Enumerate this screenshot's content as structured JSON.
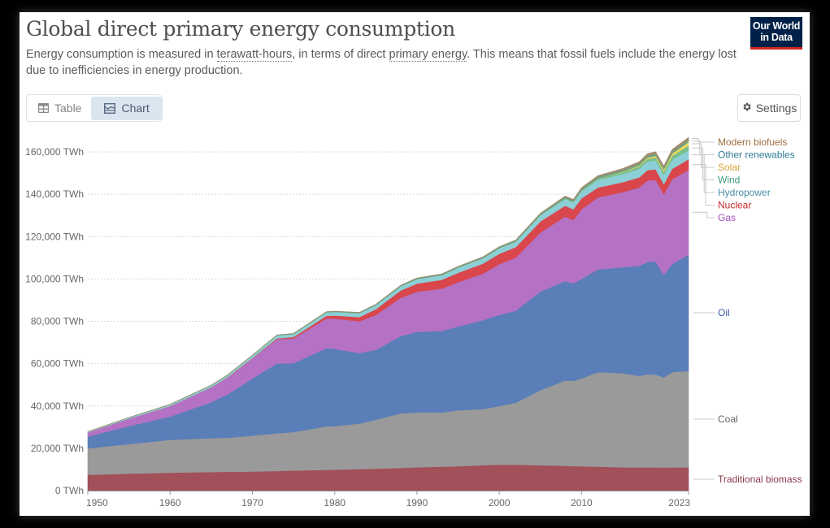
{
  "header": {
    "title": "Global direct primary energy consumption",
    "subtitle_parts": {
      "a": "Energy consumption is measured in ",
      "link1": "terawatt-hours",
      "b": ", in terms of direct ",
      "link2": "primary energy",
      "c": ". This means that fossil fuels include the energy lost due to inefficiencies in energy production."
    },
    "logo_line1": "Our World",
    "logo_line2": "in Data"
  },
  "controls": {
    "tabs": [
      {
        "label": "Table",
        "icon": "table-icon",
        "active": false
      },
      {
        "label": "Chart",
        "icon": "chart-icon",
        "active": true
      }
    ],
    "settings_label": "Settings",
    "settings_icon": "gear-icon"
  },
  "colors": {
    "Traditional biomass": "#a2505a",
    "Coal": "#9a9a9a",
    "Oil": "#5a7eb8",
    "Gas": "#b572c4",
    "Nuclear": "#d9464b",
    "Hydropower": "#8ccfd6",
    "Wind": "#7bbf8c",
    "Solar": "#f2d85a",
    "Other renewables": "#6aa58a",
    "Modern biofuels": "#a58a6a"
  },
  "legend_text_colors": {
    "Traditional biomass": "#8a3a47",
    "Coal": "#666666",
    "Oil": "#3b5aa0",
    "Gas": "#a050b8",
    "Nuclear": "#c62828",
    "Hydropower": "#4a8fa8",
    "Wind": "#3d9a76",
    "Solar": "#d8a43a",
    "Other renewables": "#2b7a93",
    "Modern biofuels": "#a06d3e"
  },
  "chart_data": {
    "type": "area",
    "stacked": true,
    "title": "Global direct primary energy consumption",
    "ylabel": "TWh",
    "xlabel": "",
    "ylim": [
      0,
      165000
    ],
    "xlim": [
      1950,
      2023
    ],
    "y_ticks": [
      0,
      20000,
      40000,
      60000,
      80000,
      100000,
      120000,
      140000,
      160000
    ],
    "y_tick_labels": [
      "0 TWh",
      "20,000 TWh",
      "40,000 TWh",
      "60,000 TWh",
      "80,000 TWh",
      "100,000 TWh",
      "120,000 TWh",
      "140,000 TWh",
      "160,000 TWh"
    ],
    "x_ticks": [
      1950,
      1960,
      1970,
      1980,
      1990,
      2000,
      2010,
      2023
    ],
    "x_tick_labels": [
      "1950",
      "1960",
      "1970",
      "1980",
      "1990",
      "2000",
      "2010",
      "2023"
    ],
    "grid": true,
    "legend_position": "right",
    "x": [
      1950,
      1955,
      1960,
      1965,
      1967,
      1970,
      1973,
      1975,
      1979,
      1980,
      1983,
      1985,
      1988,
      1990,
      1993,
      1995,
      1998,
      2000,
      2002,
      2005,
      2008,
      2009,
      2010,
      2012,
      2015,
      2017,
      2018,
      2019,
      2020,
      2021,
      2023
    ],
    "series": [
      {
        "name": "Traditional biomass",
        "values": [
          7500,
          8000,
          8500,
          8800,
          8900,
          9000,
          9300,
          9500,
          9800,
          9900,
          10200,
          10400,
          10700,
          11000,
          11300,
          11500,
          12000,
          12300,
          12300,
          12000,
          11700,
          11600,
          11500,
          11300,
          11000,
          11000,
          11000,
          11000,
          10900,
          11000,
          11000
        ]
      },
      {
        "name": "Coal",
        "values": [
          12500,
          14000,
          15500,
          16000,
          16100,
          17000,
          17800,
          18200,
          20500,
          20600,
          21500,
          23100,
          25800,
          26000,
          25600,
          26500,
          26500,
          27700,
          29200,
          35500,
          40300,
          40300,
          41500,
          44700,
          44500,
          43200,
          44000,
          43800,
          42600,
          45000,
          45500
        ]
      },
      {
        "name": "Oil",
        "values": [
          5500,
          8500,
          11000,
          17000,
          20500,
          27000,
          33000,
          32500,
          37000,
          36500,
          33300,
          33000,
          36500,
          38000,
          38500,
          39500,
          42000,
          43000,
          43500,
          46500,
          47000,
          46000,
          47000,
          48500,
          50000,
          52000,
          53000,
          53500,
          48500,
          51000,
          55000
        ]
      },
      {
        "name": "Gas",
        "values": [
          2000,
          3500,
          5000,
          7000,
          8000,
          9500,
          11500,
          11700,
          14000,
          14300,
          15000,
          16500,
          18000,
          19000,
          20000,
          21000,
          22000,
          24000,
          25000,
          28000,
          30500,
          30000,
          33000,
          34000,
          35500,
          37000,
          38500,
          38500,
          38000,
          40000,
          40000
        ]
      },
      {
        "name": "Nuclear",
        "values": [
          0,
          0,
          0,
          50,
          100,
          200,
          400,
          700,
          1300,
          1400,
          2000,
          2700,
          3500,
          3800,
          4200,
          4400,
          4700,
          4900,
          5000,
          5200,
          5100,
          5000,
          5100,
          4700,
          4700,
          4800,
          4900,
          5000,
          4800,
          5000,
          5000
        ]
      },
      {
        "name": "Hydropower",
        "values": [
          300,
          450,
          600,
          800,
          900,
          1100,
          1300,
          1400,
          1600,
          1700,
          1800,
          1900,
          2000,
          2100,
          2200,
          2400,
          2500,
          2600,
          2600,
          2900,
          3200,
          3200,
          3400,
          3600,
          3800,
          4000,
          4100,
          4200,
          4300,
          4300,
          4200
        ]
      },
      {
        "name": "Wind",
        "values": [
          0,
          0,
          0,
          0,
          0,
          0,
          0,
          0,
          0,
          0,
          0,
          0,
          0,
          0,
          0,
          10,
          20,
          30,
          50,
          100,
          220,
          270,
          340,
          520,
          830,
          1130,
          1270,
          1420,
          1590,
          1850,
          2330
        ]
      },
      {
        "name": "Solar",
        "values": [
          0,
          0,
          0,
          0,
          0,
          0,
          0,
          0,
          0,
          0,
          0,
          0,
          0,
          0,
          0,
          0,
          0,
          0,
          0,
          5,
          10,
          20,
          30,
          100,
          250,
          440,
          570,
          700,
          860,
          1030,
          1640
        ]
      },
      {
        "name": "Other renewables",
        "values": [
          100,
          120,
          150,
          180,
          200,
          230,
          260,
          280,
          300,
          310,
          340,
          380,
          420,
          450,
          480,
          500,
          540,
          560,
          580,
          630,
          700,
          720,
          760,
          820,
          900,
          950,
          980,
          1000,
          1000,
          1050,
          1100
        ]
      },
      {
        "name": "Modern biofuels",
        "values": [
          0,
          0,
          0,
          0,
          0,
          0,
          0,
          0,
          20,
          30,
          60,
          70,
          80,
          90,
          100,
          110,
          110,
          120,
          140,
          220,
          450,
          480,
          540,
          590,
          700,
          800,
          880,
          930,
          870,
          950,
          1100
        ]
      }
    ]
  }
}
